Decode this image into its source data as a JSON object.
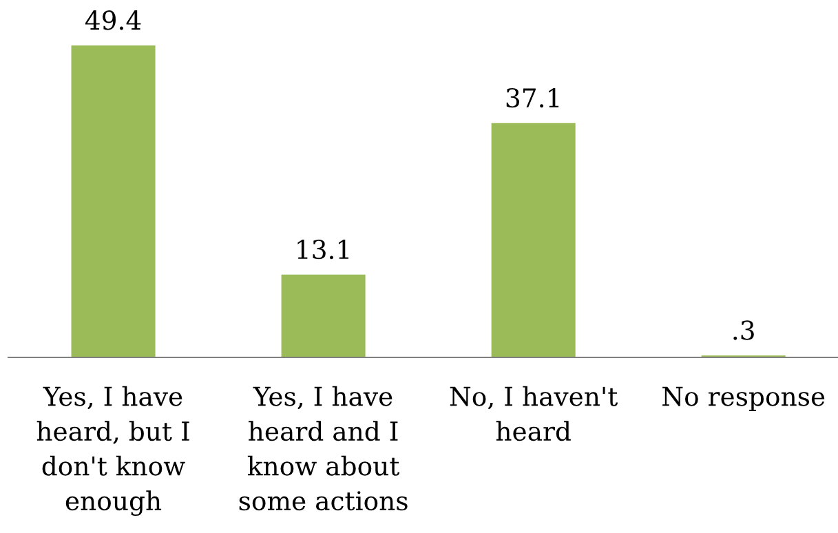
{
  "chart_data": {
    "type": "bar",
    "categories": [
      "Yes, I have\nheard, but I\ndon't know\nenough",
      "Yes, I have\nheard and I\nknow about\nsome actions",
      "No, I haven't\nheard",
      "No response"
    ],
    "values": [
      49.4,
      13.1,
      37.1,
      0.3
    ],
    "value_labels": [
      "49.4",
      "13.1",
      "37.1",
      ".3"
    ],
    "color": "#9bbb59"
  }
}
